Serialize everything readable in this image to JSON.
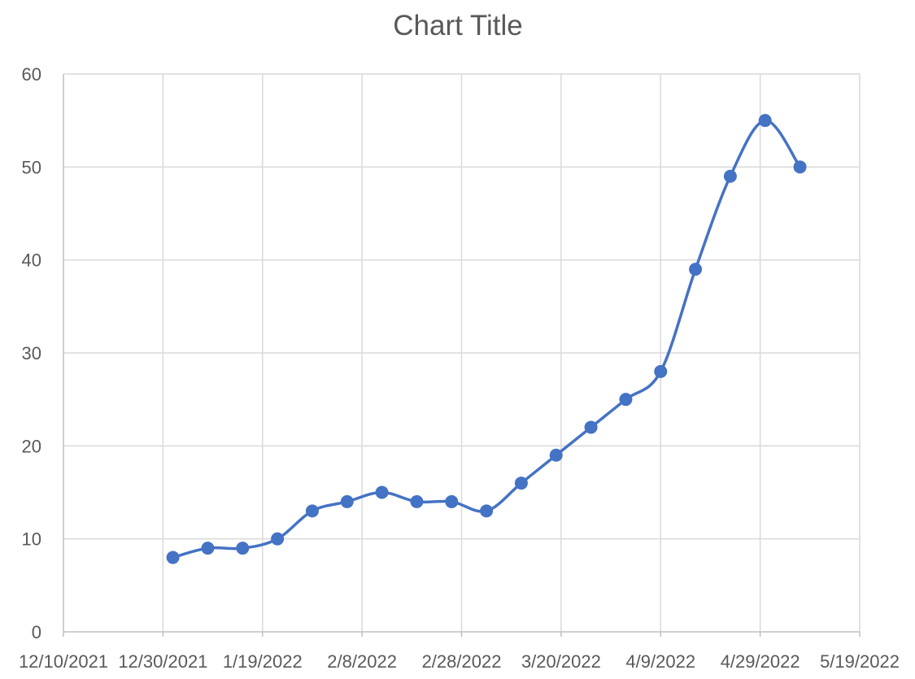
{
  "chart_data": {
    "type": "line",
    "title": "Chart Title",
    "xlabel": "",
    "ylabel": "",
    "x_axis_type": "date",
    "xlim": [
      "2021-12-10",
      "2022-05-19"
    ],
    "ylim": [
      0,
      60
    ],
    "x_ticks": [
      "12/10/2021",
      "12/30/2021",
      "1/19/2022",
      "2/8/2022",
      "2/28/2022",
      "3/20/2022",
      "4/9/2022",
      "4/29/2022",
      "5/19/2022"
    ],
    "x_tick_labels": [
      "12/10/2021",
      "12/30/2021",
      "1/19/2022",
      "2/8/2022",
      "2/28/2022",
      "3/20/2022",
      "4/9/2022",
      "4/29/2022",
      "5/19/2022"
    ],
    "y_ticks": [
      0,
      10,
      20,
      30,
      40,
      50,
      60
    ],
    "y_tick_labels": [
      "0",
      "10",
      "20",
      "30",
      "40",
      "50",
      "60"
    ],
    "grid": {
      "vertical": true,
      "horizontal": true
    },
    "legend": "none",
    "smoothed": true,
    "marker": "circle",
    "series": [
      {
        "color": "#4472c4",
        "points": [
          {
            "x": "2022-01-01",
            "y": 8
          },
          {
            "x": "2022-01-08",
            "y": 9
          },
          {
            "x": "2022-01-15",
            "y": 9
          },
          {
            "x": "2022-01-22",
            "y": 10
          },
          {
            "x": "2022-01-29",
            "y": 13
          },
          {
            "x": "2022-02-05",
            "y": 14
          },
          {
            "x": "2022-02-12",
            "y": 15
          },
          {
            "x": "2022-02-19",
            "y": 14
          },
          {
            "x": "2022-02-26",
            "y": 14
          },
          {
            "x": "2022-03-05",
            "y": 13
          },
          {
            "x": "2022-03-12",
            "y": 16
          },
          {
            "x": "2022-03-19",
            "y": 19
          },
          {
            "x": "2022-03-26",
            "y": 22
          },
          {
            "x": "2022-04-02",
            "y": 25
          },
          {
            "x": "2022-04-09",
            "y": 28
          },
          {
            "x": "2022-04-16",
            "y": 39
          },
          {
            "x": "2022-04-23",
            "y": 49
          },
          {
            "x": "2022-04-30",
            "y": 55
          },
          {
            "x": "2022-05-07",
            "y": 50
          }
        ]
      }
    ]
  }
}
